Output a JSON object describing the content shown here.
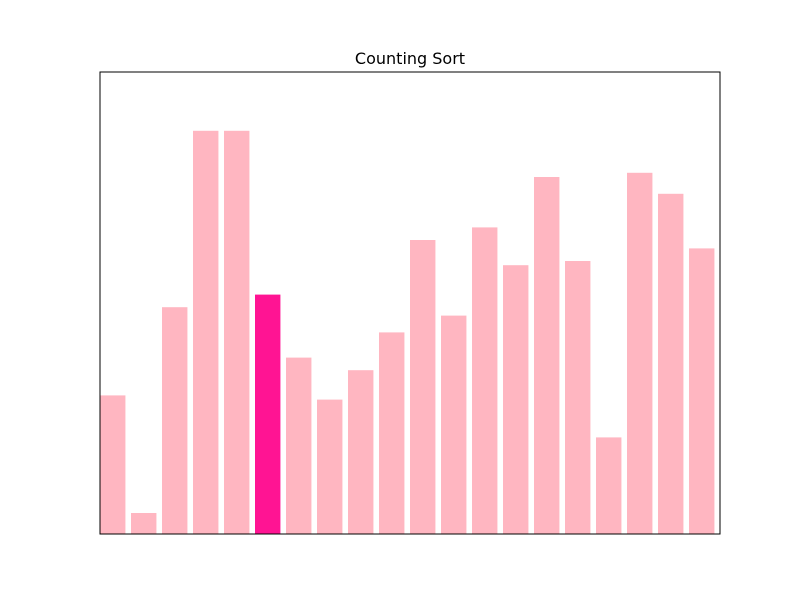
{
  "chart_data": {
    "type": "bar",
    "title": "Counting Sort",
    "xlabel": "",
    "ylabel": "",
    "axes_visible": false,
    "ylim": [
      0,
      110
    ],
    "values": [
      33,
      5,
      54,
      96,
      96,
      57,
      42,
      32,
      39,
      48,
      70,
      52,
      73,
      64,
      85,
      65,
      23,
      86,
      81,
      68
    ],
    "highlight_index": 5,
    "bar_color": "#FFB6C1",
    "highlight_color": "#FF1493"
  }
}
